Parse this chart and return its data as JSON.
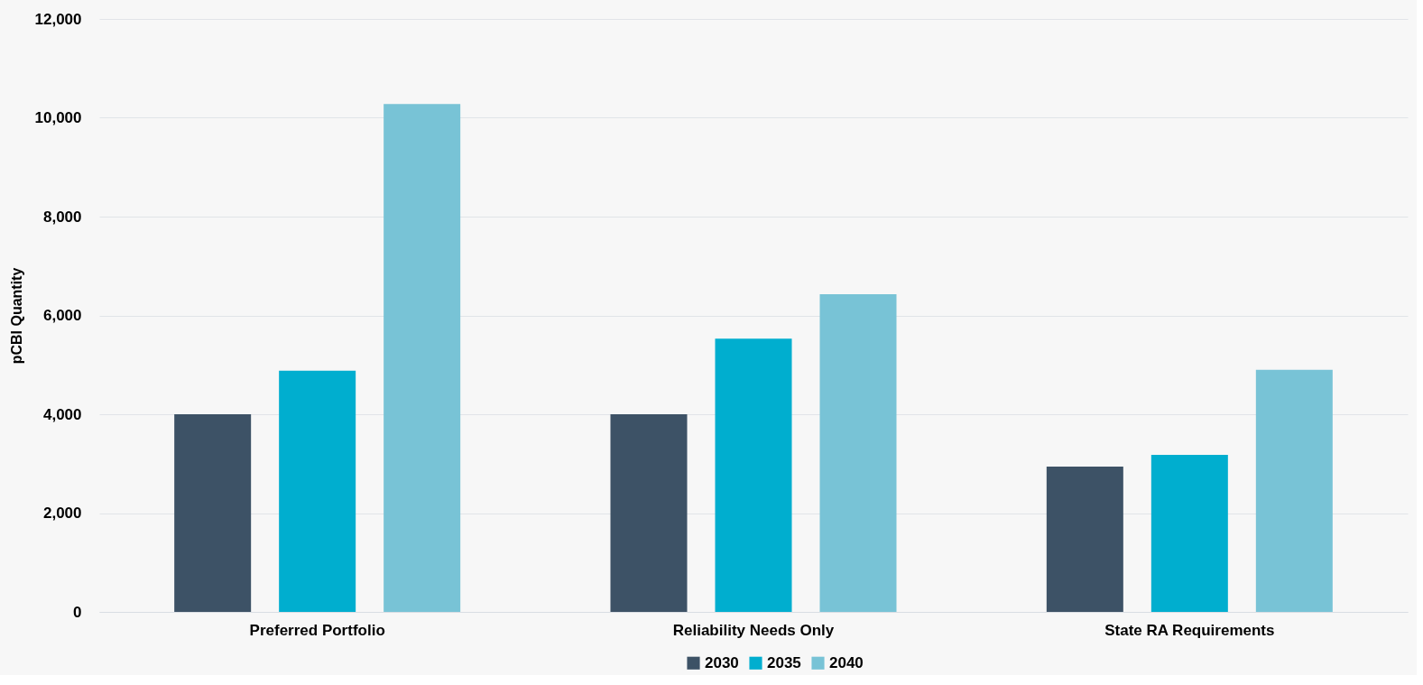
{
  "chart_data": {
    "type": "bar",
    "ylabel": "pCBI Quantity",
    "categories": [
      "Preferred Portfolio",
      "Reliability Needs Only",
      "State RA Requirements"
    ],
    "series": [
      {
        "name": "2030",
        "color": "#3d5266",
        "values": [
          4000,
          4000,
          2940
        ]
      },
      {
        "name": "2035",
        "color": "#00aecf",
        "values": [
          4880,
          5530,
          3180
        ]
      },
      {
        "name": "2040",
        "color": "#78c3d6",
        "values": [
          10280,
          6430,
          4900
        ]
      }
    ],
    "ylim": [
      0,
      12000
    ],
    "yticks": [
      0,
      {
        "value": 2000,
        "label": "2,000"
      },
      {
        "value": 4000,
        "label": "4,000"
      },
      {
        "value": 6000,
        "label": "6,000"
      },
      {
        "value": 8000,
        "label": "8,000"
      },
      {
        "value": 10000,
        "label": "10,000"
      },
      {
        "value": 12000,
        "label": "12,000"
      }
    ],
    "grid": "y",
    "legend": "bottom"
  }
}
